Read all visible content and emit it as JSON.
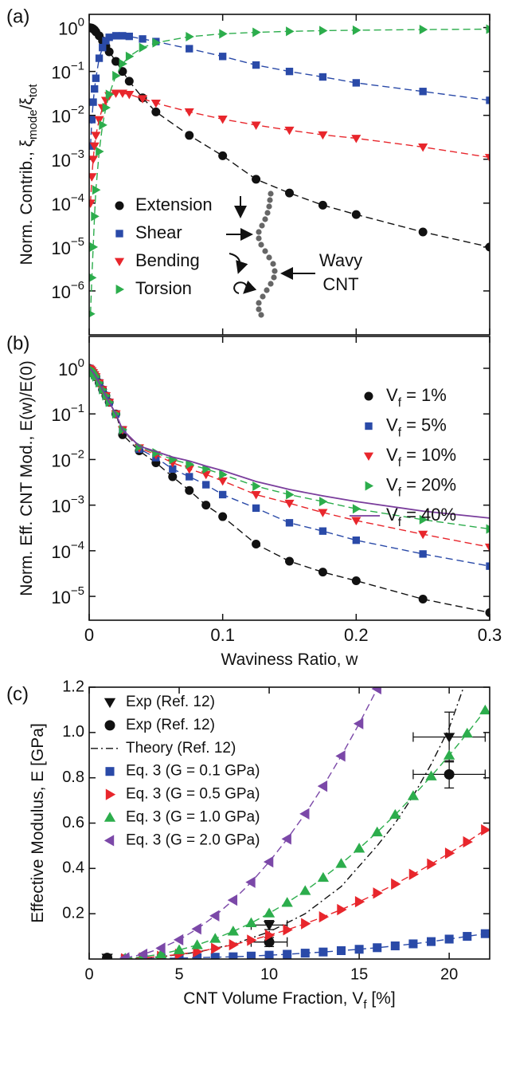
{
  "chart_data": [
    {
      "type": "line",
      "panel_label": "(a)",
      "ylabel": [
        "Norm. Contrib., ξ",
        "mode",
        "/ξ",
        "tot"
      ],
      "yscale": "log",
      "xlim": [
        0,
        0.3
      ],
      "ylim": [
        1e-07,
        2
      ],
      "xticks": [
        0,
        0.1,
        0.2,
        0.3
      ],
      "xticklabels": false,
      "yticks": [
        {
          "value": 1,
          "label": [
            "10",
            "0"
          ]
        },
        {
          "value": 0.1,
          "label": [
            "10",
            "−1"
          ]
        },
        {
          "value": 0.01,
          "label": [
            "10",
            "−2"
          ]
        },
        {
          "value": 0.001,
          "label": [
            "10",
            "−3"
          ]
        },
        {
          "value": 0.0001,
          "label": [
            "10",
            "−4"
          ]
        },
        {
          "value": 1e-05,
          "label": [
            "10",
            "−5"
          ]
        },
        {
          "value": 1e-06,
          "label": [
            "10",
            "−6"
          ]
        }
      ],
      "legend": "lower left",
      "annotation_lines": [
        "Wavy",
        "CNT"
      ],
      "x": [
        0,
        0.001,
        0.002,
        0.003,
        0.004,
        0.005,
        0.0075,
        0.01,
        0.0125,
        0.015,
        0.02,
        0.025,
        0.03,
        0.04,
        0.05,
        0.075,
        0.1,
        0.125,
        0.15,
        0.175,
        0.2,
        0.25,
        0.3
      ],
      "series": [
        {
          "name": "Extension",
          "color": "#111111",
          "marker": "circle",
          "line": "dashed",
          "values": [
            1,
            0.99,
            0.97,
            0.93,
            0.88,
            0.8,
            0.65,
            0.5,
            0.38,
            0.28,
            0.17,
            0.1,
            0.06,
            0.025,
            0.012,
            0.0035,
            0.0012,
            0.00035,
            0.00017,
            9e-05,
            5.5e-05,
            2.2e-05,
            1e-05
          ]
        },
        {
          "name": "Shear",
          "color": "#2a4aa8",
          "marker": "square",
          "line": "dashed",
          "values": [
            null,
            0.002,
            0.008,
            0.02,
            0.04,
            0.07,
            0.2,
            0.35,
            0.5,
            0.6,
            0.65,
            0.65,
            0.63,
            0.55,
            0.48,
            0.33,
            0.22,
            0.14,
            0.1,
            0.075,
            0.055,
            0.035,
            0.022
          ]
        },
        {
          "name": "Bending",
          "color": "#e8262c",
          "marker": "triangle-down",
          "line": "dashed",
          "values": [
            null,
            0.0001,
            0.0004,
            0.001,
            0.002,
            0.0035,
            0.008,
            0.015,
            0.022,
            0.028,
            0.032,
            0.032,
            0.03,
            0.024,
            0.019,
            0.012,
            0.0082,
            0.006,
            0.0046,
            0.0036,
            0.003,
            0.0019,
            0.0011
          ]
        },
        {
          "name": "Torsion",
          "color": "#2cad4c",
          "marker": "triangle-right",
          "line": "dashed",
          "values": [
            null,
            3e-07,
            2e-06,
            1e-05,
            5e-05,
            0.0002,
            0.0015,
            0.006,
            0.015,
            0.03,
            0.08,
            0.15,
            0.22,
            0.35,
            0.45,
            0.62,
            0.72,
            0.78,
            0.82,
            0.85,
            0.87,
            0.9,
            0.92
          ]
        }
      ]
    },
    {
      "type": "line",
      "panel_label": "(b)",
      "ylabel": [
        "Norm. Eff. CNT Mod., E(w)/E(0)"
      ],
      "xlabel": [
        "Waviness Ratio, w"
      ],
      "yscale": "log",
      "xlim": [
        0,
        0.3
      ],
      "ylim": [
        3e-06,
        5
      ],
      "xticks": [
        0,
        0.1,
        0.2,
        0.3
      ],
      "yticks": [
        {
          "value": 1,
          "label": [
            "10",
            "0"
          ]
        },
        {
          "value": 0.1,
          "label": [
            "10",
            "−1"
          ]
        },
        {
          "value": 0.01,
          "label": [
            "10",
            "−2"
          ]
        },
        {
          "value": 0.001,
          "label": [
            "10",
            "−3"
          ]
        },
        {
          "value": 0.0001,
          "label": [
            "10",
            "−4"
          ]
        },
        {
          "value": 1e-05,
          "label": [
            "10",
            "−5"
          ]
        }
      ],
      "legend": "upper right",
      "x": [
        0,
        0.001,
        0.002,
        0.003,
        0.004,
        0.005,
        0.0075,
        0.01,
        0.0125,
        0.015,
        0.02,
        0.025,
        0.0375,
        0.05,
        0.0625,
        0.075,
        0.0875,
        0.1,
        0.125,
        0.15,
        0.175,
        0.2,
        0.25,
        0.3
      ],
      "series": [
        {
          "name": [
            "V",
            "f",
            " = 1%"
          ],
          "color": "#111111",
          "marker": "circle",
          "line": "dashed",
          "values": [
            1,
            0.95,
            0.88,
            0.8,
            0.72,
            0.65,
            0.48,
            0.34,
            0.25,
            0.18,
            0.1,
            0.035,
            0.0155,
            0.0085,
            0.0042,
            0.0021,
            0.001,
            0.00056,
            0.00014,
            5.9e-05,
            3.4e-05,
            2.2e-05,
            8.7e-06,
            4.4e-06
          ]
        },
        {
          "name": [
            "V",
            "f",
            " = 5%"
          ],
          "color": "#2a4aa8",
          "marker": "square",
          "line": "dashed",
          "values": [
            1,
            0.95,
            0.88,
            0.8,
            0.72,
            0.65,
            0.48,
            0.34,
            0.25,
            0.18,
            0.1,
            0.045,
            0.017,
            0.011,
            0.0062,
            0.0042,
            0.0028,
            0.0017,
            0.00086,
            0.00041,
            0.00027,
            0.00017,
            8.5e-05,
            4.6e-05
          ]
        },
        {
          "name": [
            "V",
            "f",
            " = 10%"
          ],
          "color": "#e8262c",
          "marker": "triangle-down",
          "line": "dashed",
          "values": [
            1,
            0.95,
            0.88,
            0.8,
            0.72,
            0.65,
            0.48,
            0.34,
            0.25,
            0.18,
            0.1,
            0.045,
            0.018,
            0.0127,
            0.0085,
            0.0062,
            0.0047,
            0.0034,
            0.0017,
            0.0011,
            0.00069,
            0.00046,
            0.00023,
            0.00012
          ]
        },
        {
          "name": [
            "V",
            "f",
            " = 20%"
          ],
          "color": "#2cad4c",
          "marker": "triangle-right",
          "line": "dashed",
          "values": [
            1,
            0.95,
            0.88,
            0.8,
            0.72,
            0.65,
            0.48,
            0.34,
            0.25,
            0.18,
            0.1,
            0.045,
            0.019,
            0.014,
            0.01,
            0.0079,
            0.0062,
            0.0047,
            0.0026,
            0.0017,
            0.0012,
            0.00083,
            0.00048,
            0.0003
          ]
        },
        {
          "name": [
            "V",
            "f",
            " = 40%"
          ],
          "color": "#7a3d9c",
          "marker": "none",
          "line": "solid",
          "values": [
            1,
            0.95,
            0.88,
            0.8,
            0.72,
            0.65,
            0.48,
            0.34,
            0.25,
            0.18,
            0.1,
            0.045,
            0.0197,
            0.015,
            0.0113,
            0.0093,
            0.0072,
            0.0057,
            0.0033,
            0.0022,
            0.0016,
            0.0012,
            0.00074,
            0.00052
          ]
        }
      ]
    },
    {
      "type": "line",
      "panel_label": "(c)",
      "ylabel": [
        "Effective Modulus, E [GPa]"
      ],
      "xlabel": [
        "CNT Volume Fraction, V",
        "f",
        " [%]"
      ],
      "xlim": [
        0,
        22.25
      ],
      "ylim": [
        0,
        1.2
      ],
      "xticks": [
        0,
        5,
        10,
        15,
        20
      ],
      "yticks": [
        0.2,
        0.4,
        0.6,
        0.8,
        {
          "value": 1,
          "label": "1.0"
        },
        1.2
      ],
      "legend": "upper left",
      "series": [
        {
          "name": "Exp (Ref. 12)",
          "color": "#111111",
          "marker": "triangle-down",
          "line": "none",
          "x": [
            1,
            10,
            20
          ],
          "values": [
            0.005,
            0.15,
            0.98
          ],
          "xerr": [
            0,
            1,
            2
          ],
          "yerr": [
            0,
            0.02,
            0.11
          ]
        },
        {
          "name": "Exp (Ref. 12)",
          "color": "#111111",
          "marker": "circle",
          "line": "none",
          "x": [
            1,
            10,
            20
          ],
          "values": [
            0.005,
            0.075,
            0.815
          ],
          "xerr": [
            0,
            1,
            2
          ],
          "yerr": [
            0,
            0.02,
            0.06
          ]
        },
        {
          "name": "Theory (Ref. 12)",
          "color": "#111111",
          "marker": "none",
          "line": "dashdot",
          "x": [
            2,
            4,
            6,
            8,
            10,
            12,
            14,
            16,
            17,
            18,
            19,
            20,
            20.8
          ],
          "values": [
            0,
            0.01,
            0.03,
            0.065,
            0.12,
            0.2,
            0.32,
            0.5,
            0.6,
            0.72,
            0.86,
            1.02,
            1.2
          ]
        },
        {
          "name": "Eq. 3 (G = 0.1 GPa)",
          "color": "#2a4aa8",
          "marker": "square",
          "line": "dashed",
          "x": [
            2,
            3,
            4,
            5,
            6,
            7,
            8,
            9,
            10,
            11,
            12,
            13,
            14,
            15,
            16,
            17,
            18,
            19,
            20,
            21,
            22
          ],
          "values": [
            0.001,
            0.002,
            0.003,
            0.004,
            0.006,
            0.008,
            0.01,
            0.013,
            0.017,
            0.021,
            0.026,
            0.031,
            0.037,
            0.043,
            0.05,
            0.058,
            0.067,
            0.077,
            0.088,
            0.1,
            0.112
          ]
        },
        {
          "name": "Eq. 3 (G = 0.5 GPa)",
          "color": "#e8262c",
          "marker": "triangle-right",
          "line": "dashed",
          "x": [
            2,
            3,
            4,
            5,
            6,
            7,
            8,
            9,
            10,
            11,
            12,
            13,
            14,
            15,
            16,
            17,
            18,
            19,
            20,
            21,
            22
          ],
          "values": [
            0.001,
            0.005,
            0.012,
            0.021,
            0.032,
            0.047,
            0.063,
            0.083,
            0.105,
            0.129,
            0.156,
            0.186,
            0.218,
            0.253,
            0.291,
            0.331,
            0.374,
            0.419,
            0.467,
            0.517,
            0.57
          ]
        },
        {
          "name": "Eq. 3 (G = 1.0 GPa)",
          "color": "#2cad4c",
          "marker": "triangle-up",
          "line": "dashed",
          "x": [
            2,
            3,
            4,
            5,
            6,
            7,
            8,
            9,
            10,
            11,
            12,
            13,
            14,
            15,
            16,
            17,
            18,
            19,
            20,
            21,
            22
          ],
          "values": [
            0.0025,
            0.01,
            0.022,
            0.04,
            0.062,
            0.09,
            0.122,
            0.159,
            0.202,
            0.249,
            0.301,
            0.359,
            0.421,
            0.488,
            0.56,
            0.637,
            0.72,
            0.807,
            0.899,
            0.996,
            1.098
          ]
        },
        {
          "name": "Eq. 3 (G = 2.0 GPa)",
          "color": "#7b48a8",
          "marker": "triangle-left",
          "line": "dashed",
          "x": [
            2,
            3,
            4,
            5,
            6,
            7,
            8,
            9,
            10,
            11,
            12,
            13,
            14,
            15,
            16
          ],
          "values": [
            0.005,
            0.021,
            0.048,
            0.085,
            0.133,
            0.191,
            0.26,
            0.339,
            0.429,
            0.53,
            0.641,
            0.763,
            0.896,
            1.039,
            1.193
          ]
        }
      ]
    }
  ]
}
